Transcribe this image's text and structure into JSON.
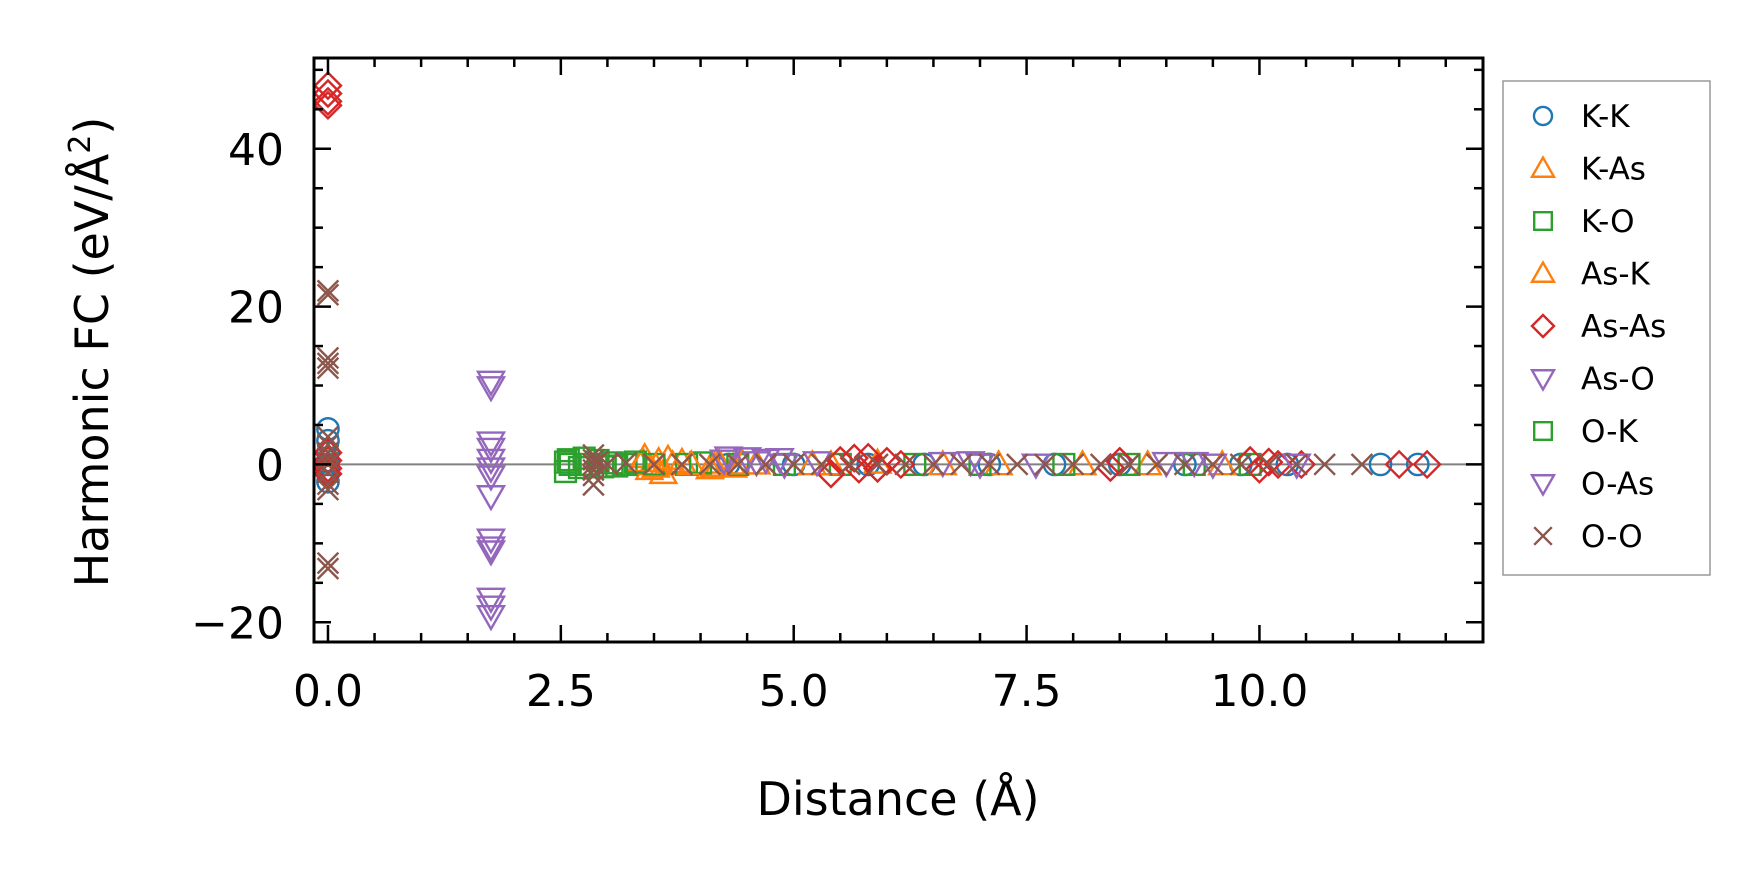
{
  "chart_data": {
    "type": "scatter",
    "title": "",
    "xlabel": "Distance (Å)",
    "ylabel_main": "Harmonic FC (eV/Å",
    "ylabel_sup": "2",
    "ylabel_end": ")",
    "xlim": [
      -0.15,
      12.4
    ],
    "ylim": [
      -22.5,
      51.5
    ],
    "xticks": [
      {
        "value": 0.0,
        "label": "0.0"
      },
      {
        "value": 2.5,
        "label": "2.5"
      },
      {
        "value": 5.0,
        "label": "5.0"
      },
      {
        "value": 7.5,
        "label": "7.5"
      },
      {
        "value": 10.0,
        "label": "10.0"
      }
    ],
    "yticks": [
      {
        "value": -20,
        "label": "−20"
      },
      {
        "value": 0,
        "label": "0"
      },
      {
        "value": 20,
        "label": "20"
      },
      {
        "value": 40,
        "label": "40"
      }
    ],
    "zero_line": 0,
    "legend_position": "outside-right",
    "series": [
      {
        "name": "K-K",
        "marker": "circle",
        "color": "#1f77b4",
        "points": [
          [
            0,
            0
          ],
          [
            0,
            1.5
          ],
          [
            0,
            3
          ],
          [
            0,
            4.5
          ],
          [
            0,
            -1.2
          ],
          [
            0,
            -2.2
          ],
          [
            4.3,
            0
          ],
          [
            5.0,
            0
          ],
          [
            5.8,
            0
          ],
          [
            6.4,
            0
          ],
          [
            7.1,
            0
          ],
          [
            7.8,
            0
          ],
          [
            8.5,
            0
          ],
          [
            9.2,
            0
          ],
          [
            9.8,
            0
          ],
          [
            10.3,
            0
          ],
          [
            11.3,
            0
          ],
          [
            11.7,
            0
          ]
        ]
      },
      {
        "name": "K-As",
        "marker": "triangle-up",
        "color": "#ff7f0e",
        "points": [
          [
            3.35,
            0
          ],
          [
            3.4,
            0.9
          ],
          [
            3.45,
            -0.6
          ],
          [
            3.55,
            0.4
          ],
          [
            3.6,
            -1.1
          ],
          [
            3.7,
            0
          ],
          [
            3.8,
            0.3
          ],
          [
            4.1,
            -0.5
          ],
          [
            4.2,
            0.2
          ],
          [
            4.35,
            -0.3
          ],
          [
            4.6,
            0.1
          ],
          [
            5.2,
            0
          ],
          [
            5.9,
            0.2
          ],
          [
            6.6,
            0
          ],
          [
            7.2,
            0
          ],
          [
            8.1,
            0
          ],
          [
            8.8,
            0
          ],
          [
            9.6,
            0
          ]
        ]
      },
      {
        "name": "K-O",
        "marker": "square",
        "color": "#2ca02c",
        "points": [
          [
            2.55,
            0.3
          ],
          [
            2.55,
            -0.9
          ],
          [
            2.6,
            0
          ],
          [
            2.75,
            0.8
          ],
          [
            2.8,
            0
          ],
          [
            2.95,
            -0.3
          ],
          [
            3.05,
            0.2
          ],
          [
            3.2,
            0
          ],
          [
            3.5,
            0
          ],
          [
            3.85,
            0
          ],
          [
            4.0,
            0.2
          ],
          [
            4.4,
            0
          ],
          [
            4.9,
            0
          ],
          [
            5.5,
            0
          ],
          [
            6.3,
            0
          ],
          [
            7.0,
            0
          ],
          [
            7.9,
            0
          ],
          [
            8.6,
            0
          ],
          [
            9.3,
            0
          ],
          [
            9.9,
            0
          ]
        ]
      },
      {
        "name": "As-K",
        "marker": "triangle-up",
        "color": "#ff7f0e",
        "points": [
          [
            3.38,
            0.4
          ],
          [
            3.52,
            -0.3
          ],
          [
            3.65,
            0.7
          ],
          [
            3.9,
            0
          ],
          [
            4.15,
            -0.2
          ],
          [
            4.45,
            0.1
          ],
          [
            5.4,
            0
          ]
        ]
      },
      {
        "name": "As-As",
        "marker": "diamond",
        "color": "#d62728",
        "points": [
          [
            0,
            48
          ],
          [
            0,
            47
          ],
          [
            0,
            46
          ],
          [
            0,
            45.5
          ],
          [
            0,
            1.5
          ],
          [
            0,
            0.5
          ],
          [
            0,
            -0.5
          ],
          [
            0,
            -1.2
          ],
          [
            5.4,
            -1.2
          ],
          [
            5.5,
            0.5
          ],
          [
            5.65,
            0.8
          ],
          [
            5.7,
            -0.6
          ],
          [
            5.8,
            0.9
          ],
          [
            5.9,
            -0.5
          ],
          [
            6.0,
            0.4
          ],
          [
            6.15,
            0
          ],
          [
            8.4,
            -0.4
          ],
          [
            8.5,
            0.4
          ],
          [
            9.9,
            0.5
          ],
          [
            10.0,
            -0.6
          ],
          [
            10.1,
            0.3
          ],
          [
            10.2,
            0
          ],
          [
            10.45,
            0
          ],
          [
            11.5,
            0
          ],
          [
            11.8,
            0
          ]
        ]
      },
      {
        "name": "As-O",
        "marker": "triangle-down",
        "color": "#9467bd",
        "points": [
          [
            1.75,
            10.5
          ],
          [
            1.75,
            9.8
          ],
          [
            1.75,
            2.8
          ],
          [
            1.75,
            2.0
          ],
          [
            1.75,
            0.6
          ],
          [
            1.75,
            -0.5
          ],
          [
            1.75,
            -1.5
          ],
          [
            1.75,
            -4
          ],
          [
            1.75,
            -9.5
          ],
          [
            1.75,
            -10.5
          ],
          [
            1.75,
            -11
          ],
          [
            1.75,
            -17
          ],
          [
            1.75,
            -18
          ],
          [
            1.75,
            -19.2
          ],
          [
            4.3,
            0.9
          ],
          [
            4.5,
            0.8
          ],
          [
            4.7,
            0.6
          ],
          [
            4.9,
            0
          ],
          [
            5.25,
            0.3
          ],
          [
            6.6,
            0.2
          ],
          [
            7.0,
            0
          ],
          [
            7.6,
            0
          ],
          [
            9.0,
            0.2
          ],
          [
            9.5,
            0
          ],
          [
            10.4,
            0
          ]
        ]
      },
      {
        "name": "O-K",
        "marker": "square",
        "color": "#2ca02c",
        "points": [
          [
            2.58,
            0.6
          ],
          [
            2.7,
            -0.4
          ],
          [
            2.9,
            0.5
          ],
          [
            3.1,
            -0.2
          ],
          [
            3.3,
            0.3
          ]
        ]
      },
      {
        "name": "O-As",
        "marker": "triangle-down",
        "color": "#9467bd",
        "points": [
          [
            4.25,
            0.5
          ],
          [
            4.6,
            0.3
          ],
          [
            4.85,
            0.7
          ],
          [
            6.9,
            0.3
          ],
          [
            9.3,
            0.2
          ]
        ]
      },
      {
        "name": "O-O",
        "marker": "x",
        "color": "#8c564b",
        "points": [
          [
            0,
            22
          ],
          [
            0,
            21.5
          ],
          [
            0,
            13.5
          ],
          [
            0,
            12.8
          ],
          [
            0,
            12.2
          ],
          [
            0,
            3.5
          ],
          [
            0,
            2.5
          ],
          [
            0,
            1.5
          ],
          [
            0,
            0.8
          ],
          [
            0,
            0
          ],
          [
            0,
            -1
          ],
          [
            0,
            -2.5
          ],
          [
            0,
            -3.2
          ],
          [
            0,
            -12.5
          ],
          [
            0,
            -13.2
          ],
          [
            2.85,
            1.2
          ],
          [
            2.85,
            0.6
          ],
          [
            2.85,
            0
          ],
          [
            2.85,
            -0.7
          ],
          [
            2.85,
            -1.4
          ],
          [
            2.85,
            -2.6
          ],
          [
            2.9,
            0.4
          ],
          [
            3.0,
            0
          ],
          [
            3.2,
            0.2
          ],
          [
            3.5,
            0
          ],
          [
            3.8,
            0
          ],
          [
            4.1,
            0
          ],
          [
            4.4,
            0
          ],
          [
            4.7,
            0
          ],
          [
            5.0,
            0
          ],
          [
            5.3,
            0
          ],
          [
            5.6,
            0
          ],
          [
            5.9,
            0
          ],
          [
            6.2,
            0
          ],
          [
            6.5,
            0
          ],
          [
            6.8,
            0
          ],
          [
            7.1,
            0
          ],
          [
            7.4,
            0
          ],
          [
            7.7,
            0
          ],
          [
            8.0,
            0
          ],
          [
            8.3,
            0
          ],
          [
            8.6,
            0
          ],
          [
            8.9,
            0
          ],
          [
            9.2,
            0
          ],
          [
            9.5,
            0
          ],
          [
            9.8,
            0
          ],
          [
            10.1,
            0
          ],
          [
            10.4,
            0
          ],
          [
            10.7,
            0
          ],
          [
            11.1,
            0
          ]
        ]
      }
    ]
  }
}
